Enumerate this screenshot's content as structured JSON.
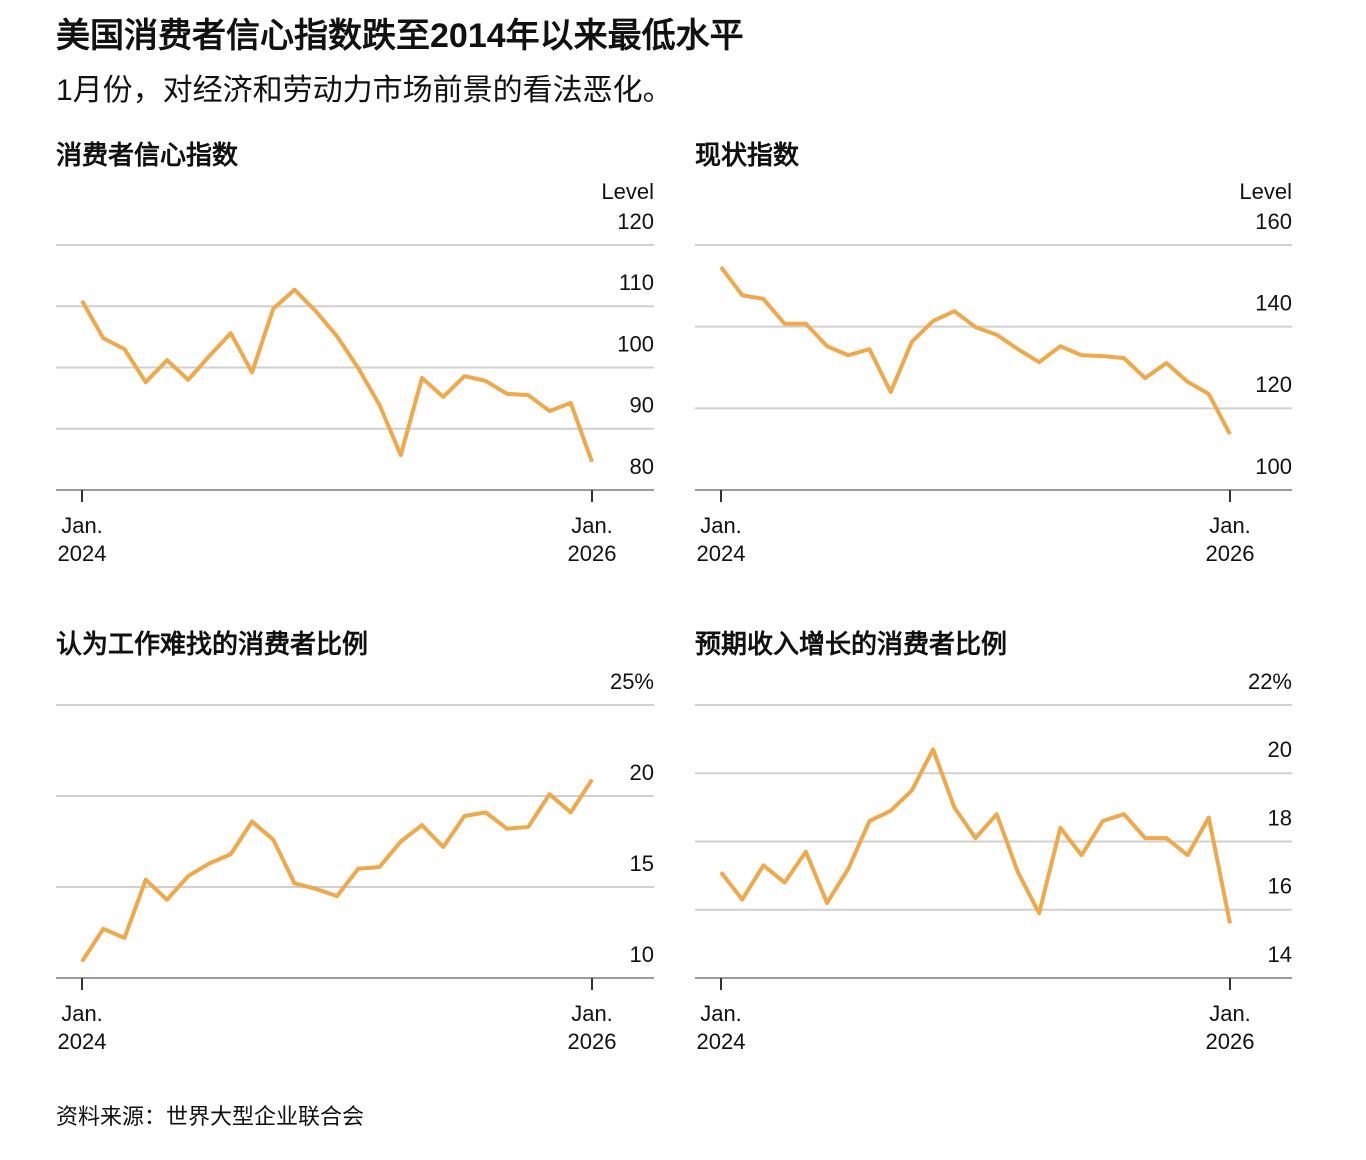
{
  "title": "美国消费者信心指数跌至2014年以来最低水平",
  "subtitle": "1月份，对经济和劳动力市场前景的看法恶化。",
  "source": "资料来源：世界大型企业联合会",
  "chart_data": [
    {
      "type": "line",
      "title": "消费者信心指数",
      "ylabel": "Level",
      "categories": [
        "Jan. 2024",
        null,
        null,
        null,
        null,
        null,
        null,
        null,
        null,
        null,
        null,
        null,
        null,
        null,
        null,
        null,
        null,
        null,
        null,
        null,
        null,
        null,
        null,
        null,
        "Jan. 2026"
      ],
      "values": [
        110.9,
        104.8,
        103.0,
        97.6,
        101.2,
        98.0,
        101.9,
        105.6,
        99.2,
        109.6,
        112.7,
        109.2,
        105.1,
        99.9,
        93.9,
        85.7,
        98.3,
        95.2,
        98.6,
        97.8,
        95.7,
        95.5,
        92.9,
        94.2,
        84.6
      ],
      "color": "#efa84a",
      "ylim": [
        80,
        120
      ],
      "yticks": [
        80,
        90,
        100,
        110,
        120
      ],
      "grid": true
    },
    {
      "type": "line",
      "title": "现状指数",
      "ylabel": "Level",
      "categories": [
        "Jan. 2024",
        null,
        null,
        null,
        null,
        null,
        null,
        null,
        null,
        null,
        null,
        null,
        null,
        null,
        null,
        null,
        null,
        null,
        null,
        null,
        null,
        null,
        null,
        null,
        "Jan. 2026"
      ],
      "values": [
        154.6,
        147.7,
        146.8,
        140.7,
        140.7,
        135.2,
        133.0,
        134.5,
        124.0,
        136.3,
        141.4,
        143.8,
        139.9,
        138.0,
        134.5,
        131.3,
        135.2,
        133.0,
        132.8,
        132.3,
        127.4,
        131.1,
        126.5,
        123.5,
        113.7
      ],
      "color": "#efa84a",
      "ylim": [
        100,
        160
      ],
      "yticks": [
        100,
        120,
        140,
        160
      ],
      "grid": true
    },
    {
      "type": "line",
      "title": "认为工作难找的消费者比例",
      "categories": [
        "Jan. 2024",
        null,
        null,
        null,
        null,
        null,
        null,
        null,
        null,
        null,
        null,
        null,
        null,
        null,
        null,
        null,
        null,
        null,
        null,
        null,
        null,
        null,
        null,
        null,
        "Jan. 2026"
      ],
      "values": [
        10.9,
        12.7,
        12.2,
        15.4,
        14.3,
        15.6,
        16.3,
        16.8,
        18.6,
        17.6,
        15.2,
        14.9,
        14.5,
        16.0,
        16.1,
        17.5,
        18.4,
        17.2,
        18.9,
        19.1,
        18.2,
        18.3,
        20.1,
        19.1,
        20.9
      ],
      "color": "#efa84a",
      "ylim": [
        10,
        25
      ],
      "yticks": [
        10,
        15,
        20,
        {
          "value": 25,
          "label": "25%"
        }
      ],
      "grid": true
    },
    {
      "type": "line",
      "title": "预期收入增长的消费者比例",
      "categories": [
        "Jan. 2024",
        null,
        null,
        null,
        null,
        null,
        null,
        null,
        null,
        null,
        null,
        null,
        null,
        null,
        null,
        null,
        null,
        null,
        null,
        null,
        null,
        null,
        null,
        null,
        "Jan. 2026"
      ],
      "values": [
        17.1,
        16.3,
        17.3,
        16.8,
        17.7,
        16.2,
        17.2,
        18.6,
        18.9,
        19.5,
        20.7,
        19.0,
        18.1,
        18.8,
        17.1,
        15.9,
        18.4,
        17.6,
        18.6,
        18.8,
        18.1,
        18.1,
        17.6,
        18.7,
        15.6
      ],
      "color": "#efa84a",
      "ylim": [
        14,
        22
      ],
      "yticks": [
        14,
        16,
        18,
        20,
        {
          "value": 22,
          "label": "22%"
        }
      ],
      "grid": true
    }
  ]
}
